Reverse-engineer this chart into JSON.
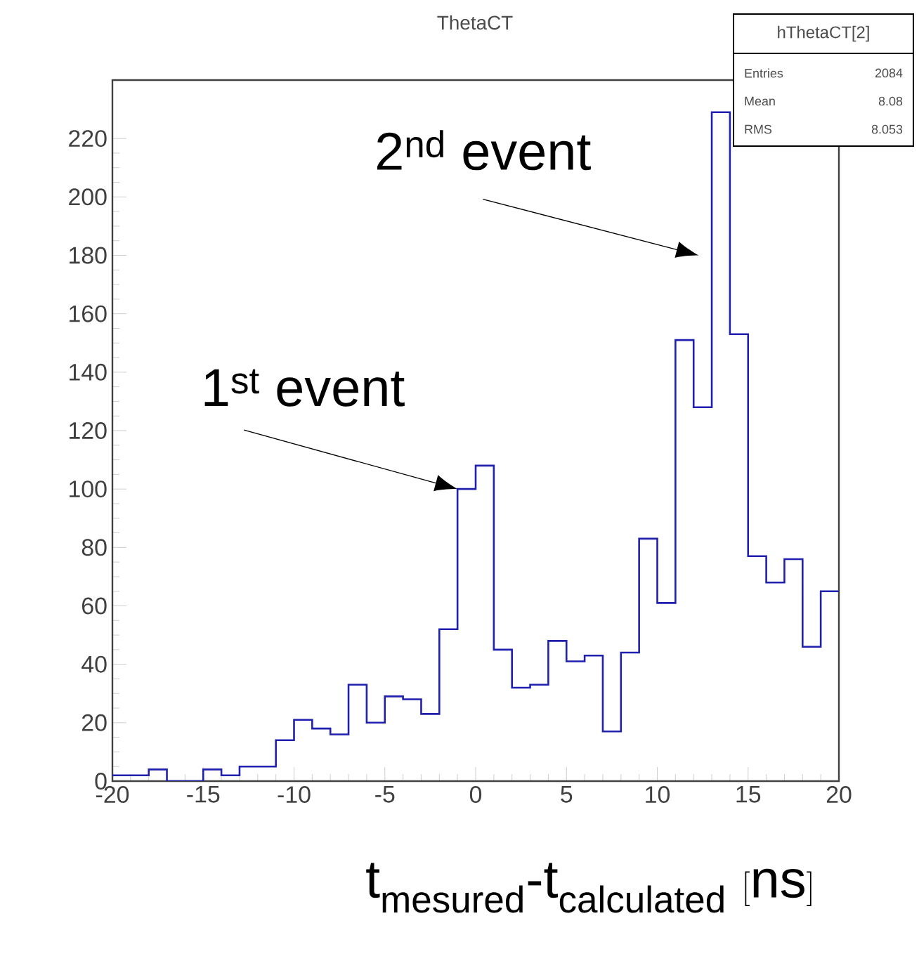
{
  "chart_data": {
    "type": "histogram",
    "title": "ThetaCT",
    "xlabel": "\\mathrm{t_{mesured}\\text{-}t_{calculated}\\ [ns]}",
    "bins": [
      -20,
      -19,
      -18,
      -17,
      -16,
      -15,
      -14,
      -13,
      -12,
      -11,
      -10,
      -9,
      -8,
      -7,
      -6,
      -5,
      -4,
      -3,
      -2,
      -1,
      0,
      1,
      2,
      3,
      4,
      5,
      6,
      7,
      8,
      9,
      10,
      11,
      12,
      13,
      14,
      15,
      16,
      17,
      18,
      19,
      20
    ],
    "values": [
      2,
      2,
      4,
      0,
      0,
      4,
      2,
      5,
      5,
      14,
      21,
      18,
      16,
      33,
      20,
      29,
      28,
      23,
      52,
      100,
      108,
      45,
      32,
      33,
      48,
      41,
      43,
      17,
      44,
      83,
      61,
      151,
      128,
      229,
      153,
      77,
      68,
      76,
      46,
      65
    ],
    "color": "#2020b0",
    "xlim": [
      -20,
      20
    ],
    "ylim": [
      0,
      240
    ],
    "xticks": [
      -20,
      -15,
      -10,
      -5,
      0,
      5,
      10,
      15,
      20
    ],
    "yticks": [
      0,
      20,
      40,
      60,
      80,
      100,
      120,
      140,
      160,
      180,
      200,
      220
    ],
    "annotations": [
      {
        "text": "1$^{st}$ event",
        "x": -1,
        "y": 100
      },
      "hThetaCT[2]",
      "Entries",
      "2084",
      "Mean",
      "8.08",
      "RMS",
      "8.053",
      "2$^{nd}$ event"
    ]
  }
}
